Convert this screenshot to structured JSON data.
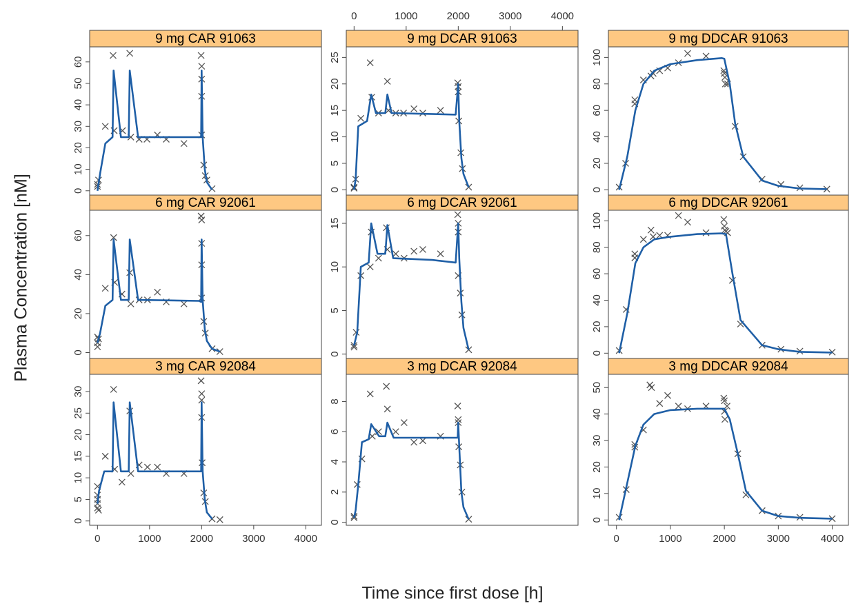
{
  "xlabel": "Time since first dose [h]",
  "ylabel": "Plasma Concentration [nM]",
  "xlim": [
    -150,
    4300
  ],
  "xticks": [
    0,
    1000,
    2000,
    3000,
    4000
  ],
  "chart_data": [
    {
      "type": "line",
      "title": "9 mg CAR 91063",
      "ylim": [
        -2,
        67
      ],
      "yticks": [
        0,
        10,
        20,
        30,
        40,
        50,
        60
      ],
      "series": [
        {
          "marker": "x",
          "color": "#555555",
          "x": [
            0,
            0,
            20,
            150,
            300,
            320,
            480,
            620,
            640,
            800,
            950,
            1150,
            1320,
            1660,
            1990,
            2000,
            2000,
            2000,
            2000,
            2040,
            2070,
            2100,
            2200
          ],
          "values": [
            2,
            3,
            5,
            30,
            63,
            28,
            28,
            64,
            25,
            24,
            24,
            26,
            24,
            22,
            63,
            58,
            52,
            44,
            26,
            12,
            7,
            5,
            1
          ]
        },
        {
          "color": "#1f5fa6",
          "x": [
            0,
            50,
            150,
            290,
            310,
            450,
            600,
            620,
            780,
            1950,
            1990,
            2000,
            2020,
            2060,
            2100,
            2200
          ],
          "values": [
            0,
            8,
            22,
            25,
            56,
            25,
            25,
            56,
            25,
            25,
            25,
            56,
            25,
            10,
            4,
            0.5
          ]
        }
      ]
    },
    {
      "type": "line",
      "title": "9 mg DCAR 91063",
      "ylim": [
        -1,
        27
      ],
      "yticks": [
        0,
        5,
        10,
        15,
        20,
        25
      ],
      "series": [
        {
          "marker": "x",
          "color": "#555555",
          "x": [
            0,
            0,
            30,
            130,
            310,
            340,
            470,
            640,
            660,
            800,
            950,
            1150,
            1320,
            1660,
            1990,
            2000,
            2000,
            2010,
            2050,
            2080,
            2200
          ],
          "values": [
            0.3,
            0.5,
            2,
            13.5,
            24,
            17.5,
            14.5,
            20.5,
            15,
            14.5,
            14.5,
            15.3,
            14.5,
            15,
            20.2,
            19.5,
            18.5,
            13,
            7,
            4,
            0.5
          ]
        },
        {
          "color": "#1f5fa6",
          "x": [
            0,
            30,
            80,
            250,
            330,
            420,
            600,
            640,
            720,
            1950,
            2000,
            2020,
            2060,
            2100,
            2200
          ],
          "values": [
            0,
            2,
            12,
            13,
            18,
            14.5,
            14.5,
            18,
            14.5,
            14.2,
            20,
            13,
            6,
            3,
            0.5
          ]
        }
      ]
    },
    {
      "type": "line",
      "title": "9 mg DDCAR 91063",
      "ylim": [
        -4,
        108
      ],
      "yticks": [
        0,
        20,
        40,
        60,
        80,
        100
      ],
      "series": [
        {
          "marker": "x",
          "color": "#555555",
          "x": [
            50,
            170,
            340,
            340,
            500,
            640,
            680,
            800,
            950,
            1150,
            1320,
            1660,
            1990,
            2000,
            2010,
            2020,
            2060,
            2200,
            2350,
            2700,
            3050,
            3400,
            3900
          ],
          "values": [
            2,
            20,
            65,
            68,
            83,
            86,
            88,
            90,
            92,
            96,
            103,
            101,
            90,
            88,
            85,
            80,
            80,
            48,
            25,
            8,
            4,
            1.5,
            0.5
          ]
        },
        {
          "color": "#1f5fa6",
          "x": [
            50,
            200,
            350,
            500,
            700,
            1000,
            1500,
            1950,
            2000,
            2100,
            2200,
            2350,
            2700,
            3000,
            3400,
            3900
          ],
          "values": [
            0,
            25,
            60,
            80,
            90,
            95,
            98,
            99.5,
            99,
            80,
            50,
            25,
            7,
            3,
            1,
            0.5
          ]
        }
      ]
    },
    {
      "type": "line",
      "title": "6 mg CAR 92061",
      "ylim": [
        -3,
        73
      ],
      "yticks": [
        0,
        20,
        40,
        60
      ],
      "series": [
        {
          "marker": "x",
          "color": "#555555",
          "x": [
            0,
            0,
            0,
            20,
            150,
            310,
            330,
            470,
            620,
            640,
            800,
            960,
            1150,
            1320,
            1660,
            1990,
            2000,
            2000,
            2000,
            2000,
            2040,
            2070,
            2200,
            2350
          ],
          "values": [
            8,
            5,
            3,
            7,
            33,
            59,
            36,
            30,
            41,
            25,
            27,
            27,
            31,
            26,
            25,
            70,
            68,
            56,
            45,
            28,
            16,
            10,
            2,
            0.5
          ]
        },
        {
          "color": "#1f5fa6",
          "x": [
            0,
            50,
            150,
            290,
            310,
            450,
            600,
            620,
            780,
            1950,
            1990,
            2000,
            2020,
            2060,
            2100,
            2200,
            2350
          ],
          "values": [
            5,
            10,
            24,
            27,
            58,
            27,
            27,
            58,
            27,
            26.5,
            26,
            58,
            27,
            12,
            6,
            2,
            0.5
          ]
        }
      ]
    },
    {
      "type": "line",
      "title": "6 mg DCAR 92061",
      "ylim": [
        -0.5,
        16.5
      ],
      "yticks": [
        0,
        5,
        10,
        15
      ],
      "series": [
        {
          "marker": "x",
          "color": "#555555",
          "x": [
            0,
            0,
            40,
            130,
            310,
            330,
            470,
            620,
            640,
            800,
            960,
            1150,
            1320,
            1660,
            1990,
            2000,
            2000,
            2000,
            2040,
            2070,
            2200
          ],
          "values": [
            0.8,
            1,
            2.5,
            9,
            10,
            14,
            11,
            14.5,
            12,
            11.5,
            11,
            11.8,
            12,
            11.5,
            16,
            15,
            14,
            9,
            7,
            4.5,
            0.5
          ]
        },
        {
          "color": "#1f5fa6",
          "x": [
            0,
            60,
            130,
            280,
            330,
            450,
            600,
            640,
            750,
            1500,
            1950,
            2000,
            2020,
            2060,
            2100,
            2200
          ],
          "values": [
            1,
            2.5,
            10,
            10.5,
            15,
            11.5,
            11.5,
            14.8,
            11,
            10.8,
            10.5,
            15,
            11,
            6,
            3,
            0.5
          ]
        }
      ]
    },
    {
      "type": "line",
      "title": "6 mg DDCAR 92061",
      "ylim": [
        -4,
        108
      ],
      "yticks": [
        0,
        20,
        40,
        60,
        80,
        100
      ],
      "series": [
        {
          "marker": "x",
          "color": "#555555",
          "x": [
            50,
            180,
            340,
            340,
            500,
            640,
            680,
            800,
            950,
            1150,
            1320,
            1660,
            1990,
            2000,
            2010,
            2030,
            2060,
            2150,
            2300,
            2700,
            3050,
            3400,
            4000
          ],
          "values": [
            2,
            33,
            72,
            75,
            86,
            93,
            88,
            89,
            89,
            104,
            99,
            91,
            101,
            96,
            93,
            92,
            91,
            55,
            22,
            6,
            3,
            1.5,
            0.8
          ]
        },
        {
          "color": "#1f5fa6",
          "x": [
            50,
            200,
            350,
            500,
            700,
            1000,
            1500,
            1950,
            2030,
            2150,
            2300,
            2700,
            3000,
            3400,
            4000
          ],
          "values": [
            0,
            30,
            68,
            80,
            86,
            88,
            90,
            90.5,
            90,
            60,
            25,
            6,
            3,
            1,
            0.5
          ]
        }
      ]
    },
    {
      "type": "line",
      "title": "3 mg CAR 92084",
      "ylim": [
        -1,
        34
      ],
      "yticks": [
        0,
        5,
        10,
        15,
        20,
        25,
        30
      ],
      "series": [
        {
          "marker": "x",
          "color": "#555555",
          "x": [
            0,
            0,
            0,
            0,
            0,
            20,
            150,
            310,
            330,
            470,
            620,
            640,
            800,
            960,
            1150,
            1320,
            1660,
            1990,
            2000,
            2000,
            2000,
            2010,
            2040,
            2070,
            2200,
            2350
          ],
          "values": [
            8,
            6,
            5,
            4,
            3,
            2.5,
            15,
            30.5,
            12,
            9,
            25.5,
            11,
            13,
            12.5,
            12.5,
            11,
            11,
            32.5,
            29.5,
            28,
            24,
            13.5,
            6.5,
            4.5,
            0.5,
            0.3
          ]
        },
        {
          "color": "#1f5fa6",
          "x": [
            0,
            30,
            130,
            290,
            310,
            450,
            600,
            620,
            780,
            1990,
            2000,
            2020,
            2060,
            2100,
            2200
          ],
          "values": [
            4,
            7,
            11.5,
            11.5,
            27.5,
            11.5,
            11.5,
            27.5,
            11.5,
            11.5,
            27.5,
            11.5,
            5,
            2,
            0.5
          ]
        }
      ]
    },
    {
      "type": "line",
      "title": "3 mg DCAR 92084",
      "ylim": [
        -0.2,
        9.8
      ],
      "yticks": [
        0,
        2,
        4,
        6,
        8
      ],
      "series": [
        {
          "marker": "x",
          "color": "#555555",
          "x": [
            0,
            0,
            60,
            150,
            310,
            350,
            470,
            620,
            640,
            800,
            960,
            1150,
            1320,
            1660,
            1990,
            2000,
            2000,
            2010,
            2040,
            2070,
            2200
          ],
          "values": [
            0.3,
            0.4,
            2.5,
            4.2,
            8.5,
            5.7,
            6,
            9,
            7.5,
            6,
            6.6,
            5.3,
            5.4,
            5.7,
            7.7,
            6.8,
            6.6,
            5,
            3.8,
            2,
            0.2
          ]
        },
        {
          "color": "#1f5fa6",
          "x": [
            0,
            30,
            80,
            150,
            280,
            330,
            480,
            600,
            640,
            760,
            1990,
            2000,
            2020,
            2060,
            2100,
            2200
          ],
          "values": [
            0.3,
            0.8,
            2.5,
            5.3,
            5.5,
            6.5,
            5.7,
            5.7,
            6.6,
            5.6,
            5.6,
            6.6,
            5,
            2,
            1,
            0.2
          ]
        }
      ]
    },
    {
      "type": "line",
      "title": "3 mg DDCAR 92084",
      "ylim": [
        -2,
        55
      ],
      "yticks": [
        0,
        10,
        20,
        30,
        40,
        50
      ],
      "series": [
        {
          "marker": "x",
          "color": "#555555",
          "x": [
            50,
            180,
            340,
            340,
            500,
            620,
            650,
            800,
            950,
            1150,
            1320,
            1660,
            1990,
            2000,
            2000,
            2010,
            2050,
            2250,
            2400,
            2700,
            3000,
            3400,
            4000
          ],
          "values": [
            1,
            11.5,
            27.5,
            28.5,
            34,
            51,
            50,
            44,
            47,
            43,
            42,
            43,
            46,
            45,
            41,
            38,
            43,
            25,
            9.5,
            3.5,
            1.5,
            1,
            0.5
          ]
        },
        {
          "color": "#1f5fa6",
          "x": [
            50,
            200,
            350,
            500,
            700,
            1000,
            1500,
            2000,
            2100,
            2250,
            2400,
            2700,
            3000,
            3400,
            4000
          ],
          "values": [
            0,
            14,
            28,
            36,
            40,
            41.5,
            42,
            42,
            38,
            25,
            11,
            3.5,
            1.5,
            0.8,
            0.5
          ]
        }
      ]
    }
  ]
}
